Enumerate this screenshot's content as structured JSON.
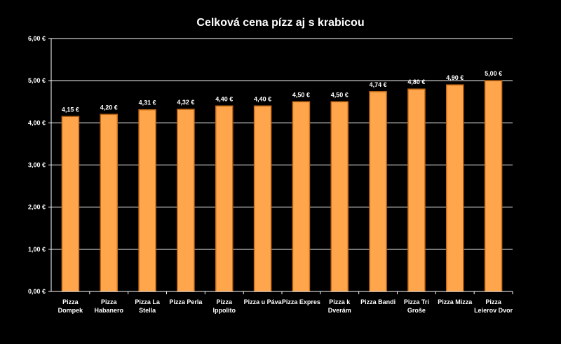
{
  "chart_data": {
    "type": "bar",
    "title": "Celková cena pízz aj s krabicou",
    "xlabel": "",
    "ylabel": "",
    "categories": [
      [
        "Pizza",
        "Dompek"
      ],
      [
        "Pizza",
        "Habanero"
      ],
      [
        "Pizza La",
        "Stella"
      ],
      [
        "Pizza Perla"
      ],
      [
        "Pizza",
        "Ippolito"
      ],
      [
        "Pizza u Páva"
      ],
      [
        "Pizza Expres"
      ],
      [
        "Pizza k",
        "Dverám"
      ],
      [
        "Pizza Bandi"
      ],
      [
        "Pizza Tri",
        "Groše"
      ],
      [
        "Pizza Mizza"
      ],
      [
        "Pizza",
        "Leierov Dvor"
      ]
    ],
    "values": [
      4.15,
      4.2,
      4.31,
      4.32,
      4.4,
      4.4,
      4.5,
      4.5,
      4.74,
      4.8,
      4.9,
      5.0
    ],
    "value_labels": [
      "4,15 €",
      "4,20 €",
      "4,31 €",
      "4,32 €",
      "4,40 €",
      "4,40 €",
      "4,50 €",
      "4,50 €",
      "4,74 €",
      "4,80 €",
      "4,90 €",
      "5,00 €"
    ],
    "yticks": [
      0,
      1,
      2,
      3,
      4,
      5,
      6
    ],
    "ytick_labels": [
      "0,00 €",
      "1,00 €",
      "2,00 €",
      "3,00 €",
      "4,00 €",
      "5,00 €",
      "6,00 €"
    ],
    "ylim": [
      0,
      6
    ],
    "grid": true,
    "legend": "none",
    "colors": {
      "background": "#000000",
      "bar_fill": "#ffa64d",
      "bar_stroke": "#c46a14",
      "grid": "#ffffff",
      "axis": "#ffffff",
      "text": "#ffffff"
    }
  }
}
